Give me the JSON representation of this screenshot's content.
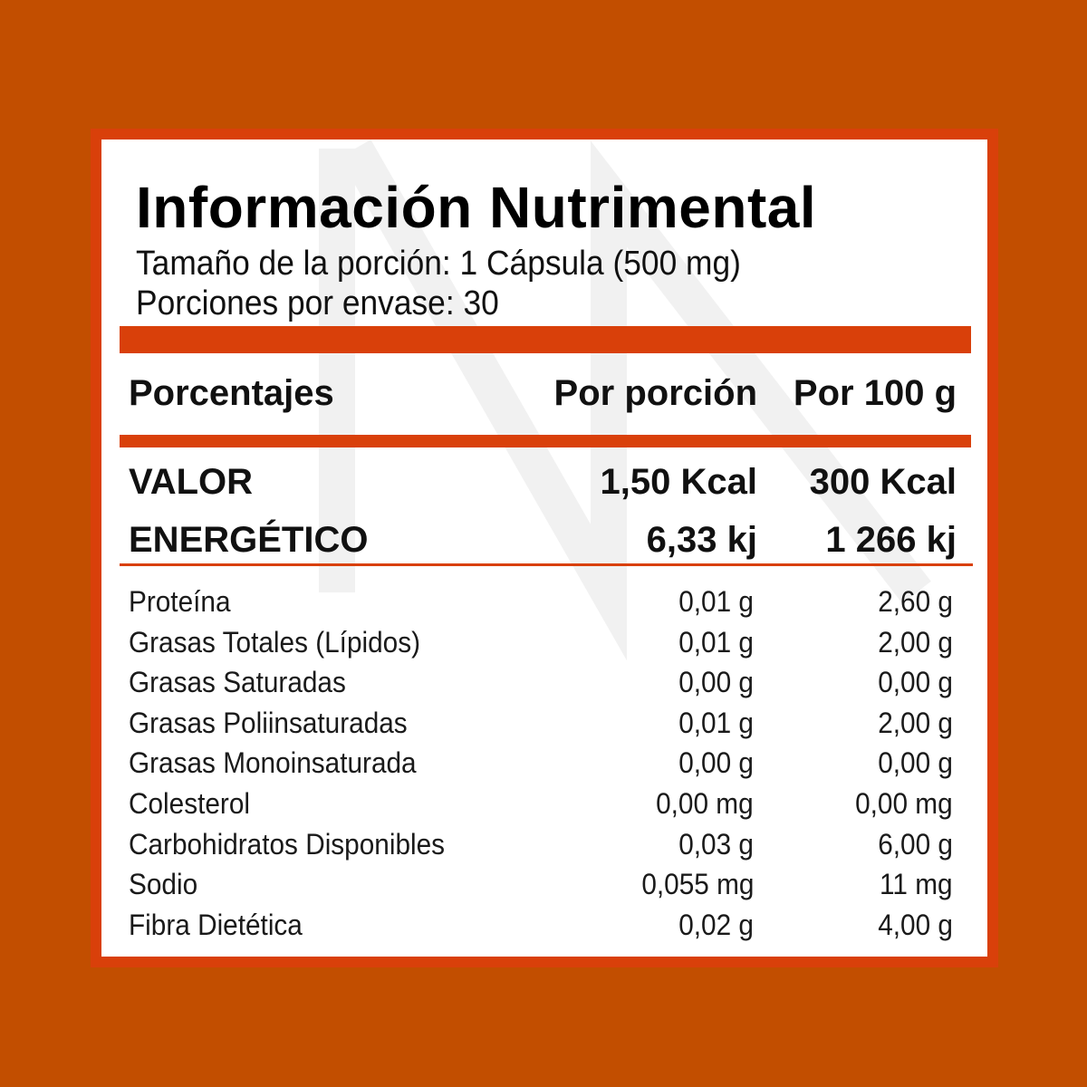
{
  "colors": {
    "background": "#c24e00",
    "accent": "#d9400a",
    "panel": "#ffffff",
    "text": "#111111"
  },
  "label": {
    "title": "Información Nutrimental",
    "serving_size": "Tamaño de la porción: 1 Cápsula (500 mg)",
    "servings_per_container": "Porciones por envase: 30"
  },
  "header": {
    "label": "Porcentajes",
    "per_serving": "Por porción",
    "per_100g": "Por 100 g"
  },
  "energy": {
    "label_line1": "VALOR",
    "label_line2": "ENERGÉTICO",
    "kcal_per_serving": "1,50 Kcal",
    "kcal_per_100g": "300 Kcal",
    "kj_per_serving": "6,33 kj",
    "kj_per_100g": "1 266 kj"
  },
  "nutrients": [
    {
      "name": "Proteína",
      "per_serving": "0,01 g",
      "per_100g": "2,60 g"
    },
    {
      "name": "Grasas Totales (Lípidos)",
      "per_serving": "0,01 g",
      "per_100g": "2,00 g"
    },
    {
      "name": "Grasas Saturadas",
      "per_serving": "0,00 g",
      "per_100g": "0,00 g"
    },
    {
      "name": "Grasas Poliinsaturadas",
      "per_serving": "0,01 g",
      "per_100g": "2,00 g"
    },
    {
      "name": "Grasas Monoinsaturada",
      "per_serving": "0,00 g",
      "per_100g": "0,00 g"
    },
    {
      "name": "Colesterol",
      "per_serving": "0,00 mg",
      "per_100g": "0,00 mg"
    },
    {
      "name": "Carbohidratos Disponibles",
      "per_serving": "0,03 g",
      "per_100g": "6,00 g"
    },
    {
      "name": "Sodio",
      "per_serving": "0,055 mg",
      "per_100g": "11 mg"
    },
    {
      "name": "Fibra Dietética",
      "per_serving": "0,02 g",
      "per_100g": "4,00 g"
    }
  ]
}
